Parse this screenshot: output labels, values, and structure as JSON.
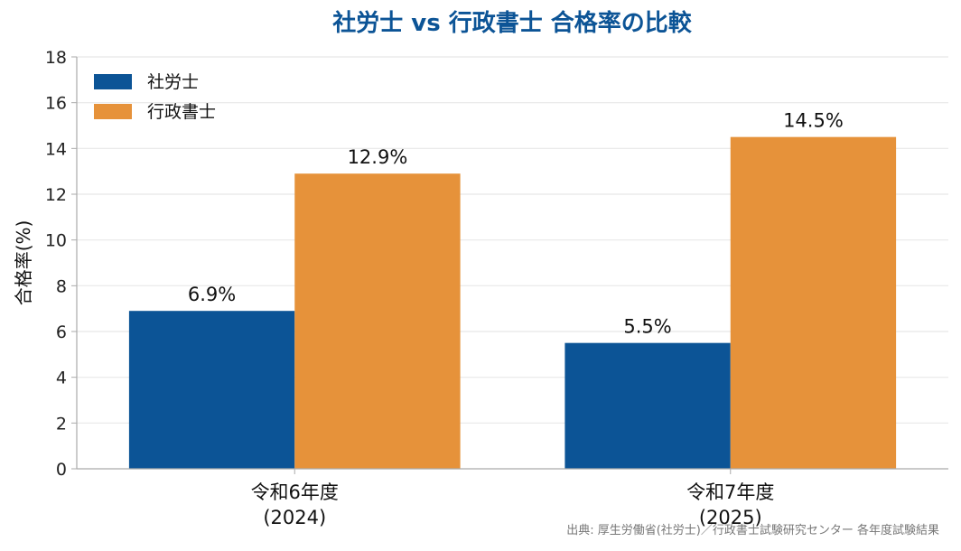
{
  "chart_data": {
    "type": "bar",
    "title": "社労士 vs 行政書士 合格率の比較",
    "ylabel": "合格率(%)",
    "xlabel": "",
    "categories": [
      {
        "line1": "令和6年度",
        "line2": "(2024)"
      },
      {
        "line1": "令和7年度",
        "line2": "(2025)"
      }
    ],
    "series": [
      {
        "name": "社労士",
        "color": "#0c5496",
        "values": [
          6.9,
          5.5
        ],
        "labels": [
          "6.9%",
          "5.5%"
        ]
      },
      {
        "name": "行政書士",
        "color": "#e6923a",
        "values": [
          12.9,
          14.5
        ],
        "labels": [
          "12.9%",
          "14.5%"
        ]
      }
    ],
    "ylim": [
      0,
      18
    ],
    "yticks": [
      0,
      2,
      4,
      6,
      8,
      10,
      12,
      14,
      16,
      18
    ],
    "grid": true,
    "legend_position": "top-left",
    "title_color": "#0c5496",
    "source": "出典: 厚生労働省(社労士)／行政書士試験研究センター 各年度試験結果"
  }
}
